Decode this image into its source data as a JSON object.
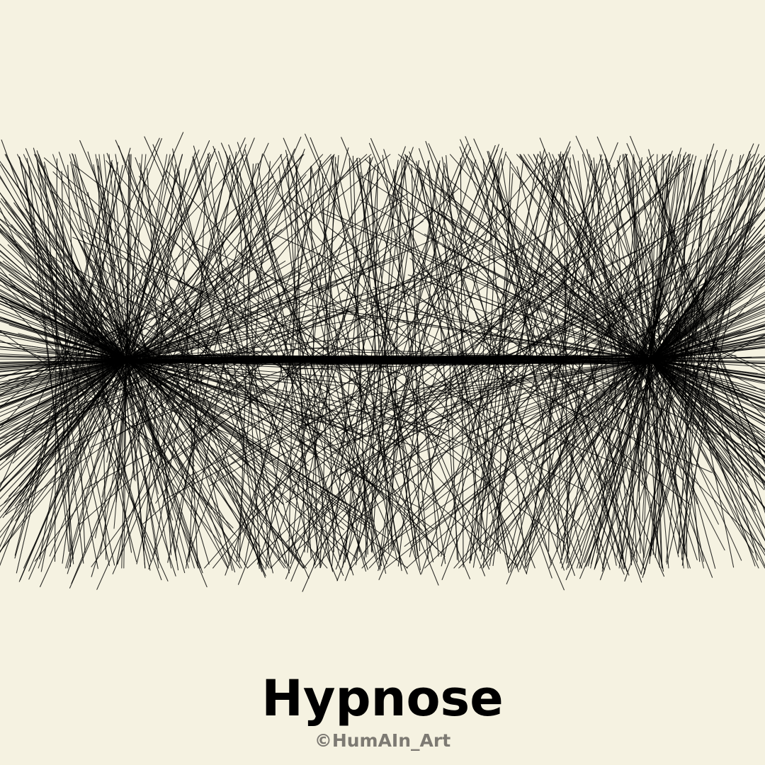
{
  "artwork": {
    "title": "Hypnose",
    "credit": "©HumAIn_Art",
    "colors": {
      "background": "#f5f2e1",
      "lines": "#000000",
      "title": "#000000",
      "credit": "#7d7a73"
    },
    "motif": "dense fan of thin straight lines converging on two focal points along a horizontal band"
  }
}
